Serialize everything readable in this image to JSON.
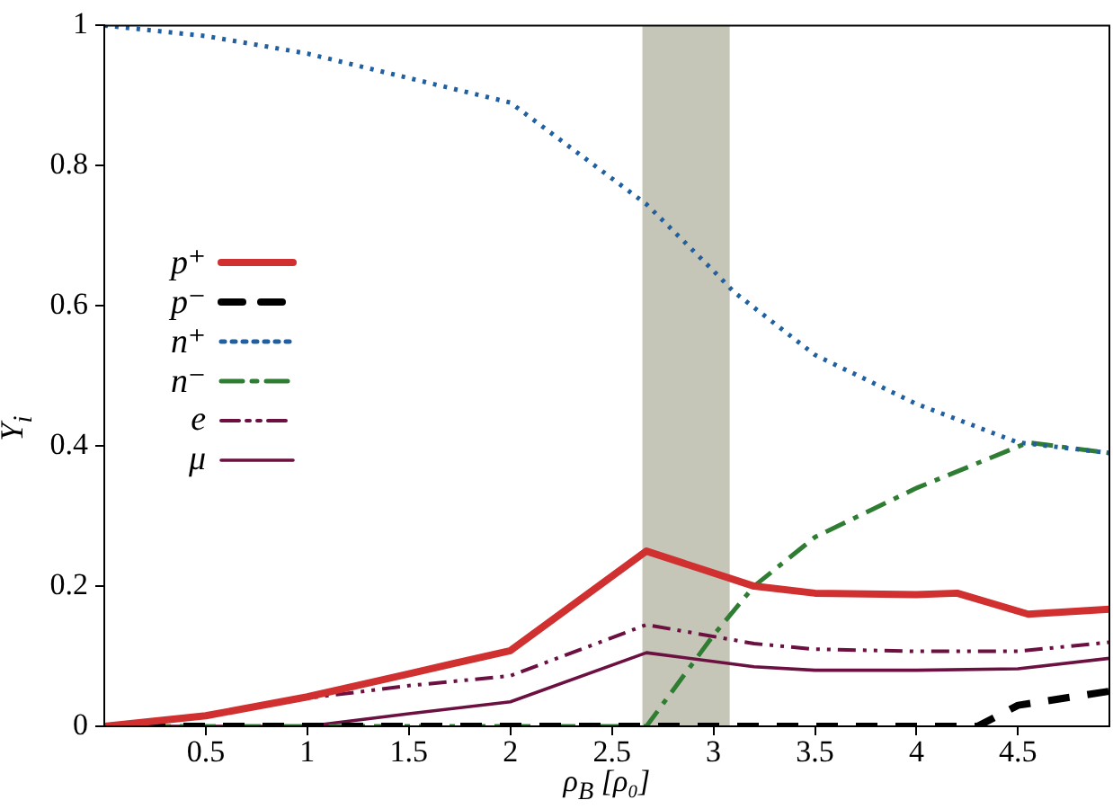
{
  "chart_data": {
    "type": "line",
    "xlabel": "ρ$_{B}$ [ρ₀]",
    "ylabel": "Y$_{i}$",
    "xlim": [
      0,
      4.95
    ],
    "xticks": [
      0.5,
      1,
      1.5,
      2,
      2.5,
      3,
      3.5,
      4,
      4.5
    ],
    "ylim": [
      0,
      1
    ],
    "yticks": [
      0,
      0.2,
      0.4,
      0.6,
      0.8,
      1
    ],
    "grid": false,
    "legend": "left",
    "marker": "none",
    "bands": [
      {
        "axis": "x",
        "from": 2.65,
        "to": 3.08,
        "color": "#c6c6b8"
      }
    ],
    "series": [
      {
        "name": "p⁺",
        "color": "#d03030",
        "line_style": "solid",
        "x": [
          0,
          0.5,
          1,
          1.5,
          2,
          2.67,
          3.2,
          3.5,
          4,
          4.2,
          4.55,
          4.95
        ],
        "values": [
          0,
          0.015,
          0.042,
          0.075,
          0.108,
          0.25,
          0.2,
          0.19,
          0.188,
          0.19,
          0.16,
          0.167
        ]
      },
      {
        "name": "p⁻",
        "color": "#000000",
        "line_style": "dashed",
        "x": [
          0,
          1,
          2,
          3,
          4,
          4.3,
          4.5,
          4.95
        ],
        "values": [
          0,
          0,
          0,
          0,
          0,
          0,
          0.03,
          0.05
        ]
      },
      {
        "name": "n⁺",
        "color": "#2060a0",
        "line_style": "dotted",
        "x": [
          0,
          0.5,
          1,
          1.5,
          2,
          2.67,
          3,
          3.1,
          3.5,
          4,
          4.5,
          4.95
        ],
        "values": [
          1,
          0.985,
          0.96,
          0.925,
          0.89,
          0.745,
          0.65,
          0.62,
          0.53,
          0.46,
          0.405,
          0.39
        ]
      },
      {
        "name": "n⁻",
        "color": "#2e7d32",
        "line_style": "dashdot",
        "x": [
          0,
          1,
          2,
          2.67,
          3,
          3.2,
          3.5,
          4,
          4.55,
          4.95
        ],
        "values": [
          0,
          0,
          0,
          0,
          0.13,
          0.2,
          0.27,
          0.34,
          0.405,
          0.39
        ]
      },
      {
        "name": "e",
        "color": "#6b1040",
        "line_style": "dashdotdot",
        "x": [
          0,
          0.5,
          1,
          1.5,
          2,
          2.67,
          3.2,
          3.5,
          4,
          4.5,
          4.95
        ],
        "values": [
          0,
          0.015,
          0.04,
          0.058,
          0.072,
          0.145,
          0.118,
          0.11,
          0.107,
          0.107,
          0.12
        ]
      },
      {
        "name": "μ",
        "color": "#6b1040",
        "line_style": "solid",
        "x": [
          0,
          1,
          1.5,
          2,
          2.67,
          3.2,
          3.5,
          4,
          4.5,
          4.95
        ],
        "values": [
          0,
          0,
          0.018,
          0.035,
          0.105,
          0.085,
          0.08,
          0.08,
          0.082,
          0.097
        ]
      }
    ]
  }
}
